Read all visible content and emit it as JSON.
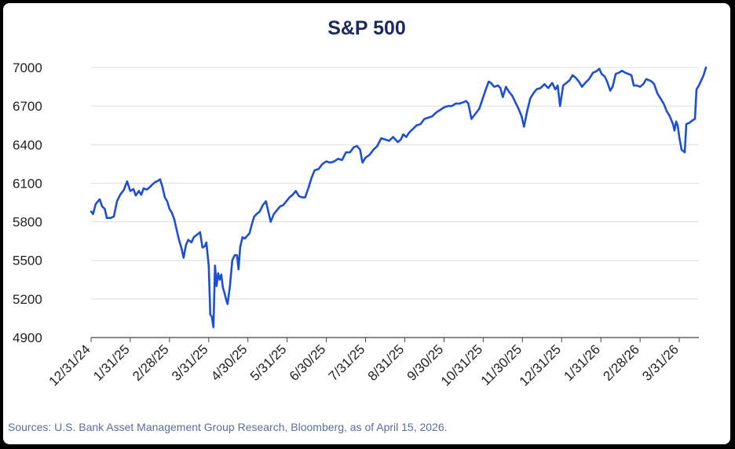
{
  "chart_data": {
    "type": "line",
    "title": "S&P 500",
    "xlabel": "",
    "ylabel": "",
    "ylim": [
      4900,
      7000
    ],
    "yticks": [
      4900,
      5200,
      5500,
      5800,
      6100,
      6400,
      6700,
      7000
    ],
    "xticks": [
      "12/31/24",
      "1/31/25",
      "2/28/25",
      "3/31/25",
      "4/30/25",
      "5/31/25",
      "6/30/25",
      "7/31/25",
      "8/31/25",
      "9/30/25",
      "10/31/25",
      "11/30/25",
      "12/31/25",
      "1/31/26",
      "2/28/26",
      "3/31/26"
    ],
    "x_range_months": [
      0,
      15.5
    ],
    "grid": true,
    "series": [
      {
        "name": "S&P 500",
        "color": "#1f4fd1",
        "points": [
          [
            0.0,
            5880
          ],
          [
            0.05,
            5860
          ],
          [
            0.12,
            5940
          ],
          [
            0.22,
            5975
          ],
          [
            0.28,
            5920
          ],
          [
            0.35,
            5900
          ],
          [
            0.4,
            5830
          ],
          [
            0.5,
            5830
          ],
          [
            0.58,
            5842
          ],
          [
            0.66,
            5960
          ],
          [
            0.74,
            6010
          ],
          [
            0.84,
            6050
          ],
          [
            0.92,
            6115
          ],
          [
            1.0,
            6040
          ],
          [
            1.08,
            6055
          ],
          [
            1.14,
            6005
          ],
          [
            1.22,
            6040
          ],
          [
            1.28,
            6010
          ],
          [
            1.34,
            6060
          ],
          [
            1.42,
            6050
          ],
          [
            1.5,
            6070
          ],
          [
            1.56,
            6090
          ],
          [
            1.64,
            6110
          ],
          [
            1.7,
            6118
          ],
          [
            1.76,
            6130
          ],
          [
            1.82,
            6070
          ],
          [
            1.88,
            5990
          ],
          [
            1.94,
            5960
          ],
          [
            2.0,
            5900
          ],
          [
            2.06,
            5870
          ],
          [
            2.12,
            5820
          ],
          [
            2.18,
            5740
          ],
          [
            2.24,
            5660
          ],
          [
            2.3,
            5600
          ],
          [
            2.36,
            5520
          ],
          [
            2.42,
            5620
          ],
          [
            2.48,
            5660
          ],
          [
            2.56,
            5640
          ],
          [
            2.62,
            5680
          ],
          [
            2.7,
            5700
          ],
          [
            2.78,
            5720
          ],
          [
            2.84,
            5600
          ],
          [
            2.9,
            5610
          ],
          [
            2.94,
            5640
          ],
          [
            3.0,
            5460
          ],
          [
            3.04,
            5080
          ],
          [
            3.08,
            5060
          ],
          [
            3.12,
            4980
          ],
          [
            3.16,
            5460
          ],
          [
            3.2,
            5300
          ],
          [
            3.24,
            5400
          ],
          [
            3.28,
            5350
          ],
          [
            3.32,
            5390
          ],
          [
            3.36,
            5290
          ],
          [
            3.4,
            5250
          ],
          [
            3.44,
            5200
          ],
          [
            3.48,
            5160
          ],
          [
            3.54,
            5300
          ],
          [
            3.6,
            5500
          ],
          [
            3.66,
            5540
          ],
          [
            3.72,
            5540
          ],
          [
            3.76,
            5430
          ],
          [
            3.8,
            5600
          ],
          [
            3.86,
            5680
          ],
          [
            3.92,
            5670
          ],
          [
            3.98,
            5690
          ],
          [
            4.04,
            5710
          ],
          [
            4.1,
            5780
          ],
          [
            4.16,
            5840
          ],
          [
            4.22,
            5860
          ],
          [
            4.3,
            5880
          ],
          [
            4.38,
            5930
          ],
          [
            4.46,
            5960
          ],
          [
            4.52,
            5880
          ],
          [
            4.58,
            5800
          ],
          [
            4.66,
            5860
          ],
          [
            4.74,
            5890
          ],
          [
            4.82,
            5920
          ],
          [
            4.9,
            5930
          ],
          [
            4.98,
            5960
          ],
          [
            5.06,
            5990
          ],
          [
            5.14,
            6010
          ],
          [
            5.22,
            6040
          ],
          [
            5.3,
            6000
          ],
          [
            5.38,
            5990
          ],
          [
            5.46,
            5990
          ],
          [
            5.54,
            6060
          ],
          [
            5.62,
            6140
          ],
          [
            5.7,
            6200
          ],
          [
            5.8,
            6210
          ],
          [
            5.9,
            6250
          ],
          [
            6.0,
            6270
          ],
          [
            6.1,
            6260
          ],
          [
            6.2,
            6270
          ],
          [
            6.3,
            6290
          ],
          [
            6.4,
            6280
          ],
          [
            6.5,
            6340
          ],
          [
            6.6,
            6340
          ],
          [
            6.7,
            6380
          ],
          [
            6.78,
            6390
          ],
          [
            6.86,
            6360
          ],
          [
            6.92,
            6260
          ],
          [
            7.0,
            6300
          ],
          [
            7.1,
            6320
          ],
          [
            7.2,
            6360
          ],
          [
            7.3,
            6390
          ],
          [
            7.4,
            6450
          ],
          [
            7.5,
            6440
          ],
          [
            7.6,
            6430
          ],
          [
            7.7,
            6460
          ],
          [
            7.76,
            6440
          ],
          [
            7.82,
            6420
          ],
          [
            7.9,
            6440
          ],
          [
            7.96,
            6480
          ],
          [
            8.04,
            6460
          ],
          [
            8.1,
            6490
          ],
          [
            8.2,
            6520
          ],
          [
            8.3,
            6550
          ],
          [
            8.4,
            6560
          ],
          [
            8.5,
            6600
          ],
          [
            8.6,
            6610
          ],
          [
            8.7,
            6620
          ],
          [
            8.8,
            6650
          ],
          [
            8.9,
            6670
          ],
          [
            9.0,
            6690
          ],
          [
            9.1,
            6700
          ],
          [
            9.2,
            6700
          ],
          [
            9.3,
            6720
          ],
          [
            9.4,
            6720
          ],
          [
            9.5,
            6730
          ],
          [
            9.56,
            6740
          ],
          [
            9.62,
            6720
          ],
          [
            9.7,
            6600
          ],
          [
            9.8,
            6640
          ],
          [
            9.9,
            6680
          ],
          [
            10.0,
            6770
          ],
          [
            10.08,
            6840
          ],
          [
            10.14,
            6890
          ],
          [
            10.2,
            6880
          ],
          [
            10.28,
            6850
          ],
          [
            10.38,
            6860
          ],
          [
            10.44,
            6840
          ],
          [
            10.5,
            6770
          ],
          [
            10.58,
            6850
          ],
          [
            10.66,
            6810
          ],
          [
            10.74,
            6780
          ],
          [
            10.82,
            6730
          ],
          [
            10.9,
            6680
          ],
          [
            10.98,
            6620
          ],
          [
            11.04,
            6540
          ],
          [
            11.12,
            6660
          ],
          [
            11.2,
            6760
          ],
          [
            11.28,
            6800
          ],
          [
            11.36,
            6830
          ],
          [
            11.46,
            6840
          ],
          [
            11.56,
            6870
          ],
          [
            11.66,
            6840
          ],
          [
            11.76,
            6880
          ],
          [
            11.84,
            6830
          ],
          [
            11.9,
            6860
          ],
          [
            11.96,
            6700
          ],
          [
            12.04,
            6860
          ],
          [
            12.12,
            6880
          ],
          [
            12.2,
            6900
          ],
          [
            12.28,
            6940
          ],
          [
            12.36,
            6920
          ],
          [
            12.44,
            6890
          ],
          [
            12.52,
            6850
          ],
          [
            12.6,
            6880
          ],
          [
            12.7,
            6910
          ],
          [
            12.8,
            6960
          ],
          [
            12.88,
            6970
          ],
          [
            12.96,
            6990
          ],
          [
            13.02,
            6950
          ],
          [
            13.1,
            6930
          ],
          [
            13.16,
            6890
          ],
          [
            13.24,
            6820
          ],
          [
            13.3,
            6850
          ],
          [
            13.38,
            6950
          ],
          [
            13.46,
            6960
          ],
          [
            13.54,
            6975
          ],
          [
            13.62,
            6960
          ],
          [
            13.7,
            6950
          ],
          [
            13.78,
            6940
          ],
          [
            13.84,
            6860
          ],
          [
            13.92,
            6860
          ],
          [
            14.0,
            6850
          ],
          [
            14.08,
            6870
          ],
          [
            14.16,
            6910
          ],
          [
            14.24,
            6900
          ],
          [
            14.3,
            6890
          ],
          [
            14.36,
            6870
          ],
          [
            14.44,
            6800
          ],
          [
            14.52,
            6760
          ],
          [
            14.6,
            6720
          ],
          [
            14.68,
            6660
          ],
          [
            14.76,
            6620
          ],
          [
            14.84,
            6560
          ],
          [
            14.88,
            6510
          ],
          [
            14.92,
            6580
          ],
          [
            14.96,
            6550
          ],
          [
            15.0,
            6460
          ],
          [
            15.06,
            6360
          ],
          [
            15.14,
            6340
          ],
          [
            15.18,
            6560
          ],
          [
            15.26,
            6570
          ],
          [
            15.34,
            6590
          ],
          [
            15.4,
            6600
          ],
          [
            15.44,
            6830
          ],
          [
            15.5,
            6860
          ],
          [
            15.56,
            6900
          ],
          [
            15.62,
            6940
          ],
          [
            15.68,
            7000
          ]
        ]
      }
    ]
  },
  "footer": {
    "source": "Sources: U.S. Bank Asset Management Group Research, Bloomberg, as of April 15, 2026."
  }
}
